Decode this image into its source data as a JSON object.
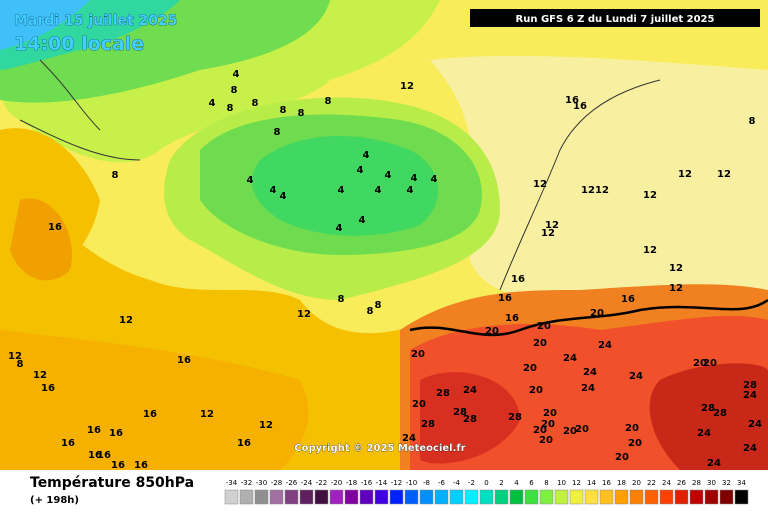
{
  "header": {
    "date": "Mardi 15 juillet 2025",
    "time": "14:00 locale",
    "run": "Run GFS 6 Z du Lundi 7 juillet 2025"
  },
  "footer": {
    "title": "Température 850hPa",
    "lead": "(+ 198h)",
    "copyright": "Copyright © 2025 Meteociel.fr"
  },
  "legend": {
    "values": [
      -34,
      -32,
      -30,
      -28,
      -26,
      -24,
      -22,
      -20,
      -18,
      -16,
      -14,
      -12,
      -10,
      -8,
      -6,
      -4,
      -2,
      0,
      2,
      4,
      6,
      8,
      10,
      12,
      14,
      16,
      18,
      20,
      22,
      24,
      26,
      28,
      30,
      32,
      34
    ],
    "colors": [
      "#d0d0d0",
      "#b0b0b0",
      "#909090",
      "#a070a0",
      "#804080",
      "#602060",
      "#401040",
      "#a020c0",
      "#8000a0",
      "#6000c0",
      "#4000e0",
      "#0020ff",
      "#0060ff",
      "#0090ff",
      "#00b0ff",
      "#00d0ff",
      "#00f0ff",
      "#00e0c0",
      "#00d080",
      "#00c040",
      "#40e040",
      "#80f040",
      "#c0f040",
      "#f0f040",
      "#ffe040",
      "#ffc020",
      "#ffa000",
      "#ff8000",
      "#ff6000",
      "#ff4000",
      "#e02000",
      "#c00000",
      "#a00000",
      "#800000",
      "#000000"
    ]
  },
  "contour_labels": [
    "4",
    "8",
    "4",
    "8",
    "8",
    "8",
    "8",
    "8",
    "12",
    "8",
    "8",
    "4",
    "4",
    "4",
    "4",
    "4",
    "4",
    "4",
    "4",
    "4",
    "4",
    "4",
    "4",
    "4",
    "16",
    "12",
    "12",
    "8",
    "8",
    "8",
    "16",
    "16",
    "8",
    "12",
    "12",
    "12",
    "12",
    "12",
    "12",
    "12",
    "12",
    "12",
    "12",
    "12",
    "16",
    "16",
    "16",
    "16",
    "20",
    "20",
    "20",
    "20",
    "20",
    "20",
    "24",
    "24",
    "24",
    "24",
    "20",
    "20",
    "12",
    "8",
    "12",
    "16",
    "16",
    "16",
    "12",
    "12",
    "16",
    "16",
    "16",
    "16",
    "16",
    "16",
    "16",
    "16",
    "28",
    "24",
    "20",
    "28",
    "28",
    "28",
    "28",
    "20",
    "24",
    "20",
    "20",
    "20",
    "20",
    "20",
    "20",
    "20",
    "20",
    "20",
    "24",
    "28",
    "28",
    "28",
    "24",
    "24",
    "24",
    "24",
    "24"
  ]
}
